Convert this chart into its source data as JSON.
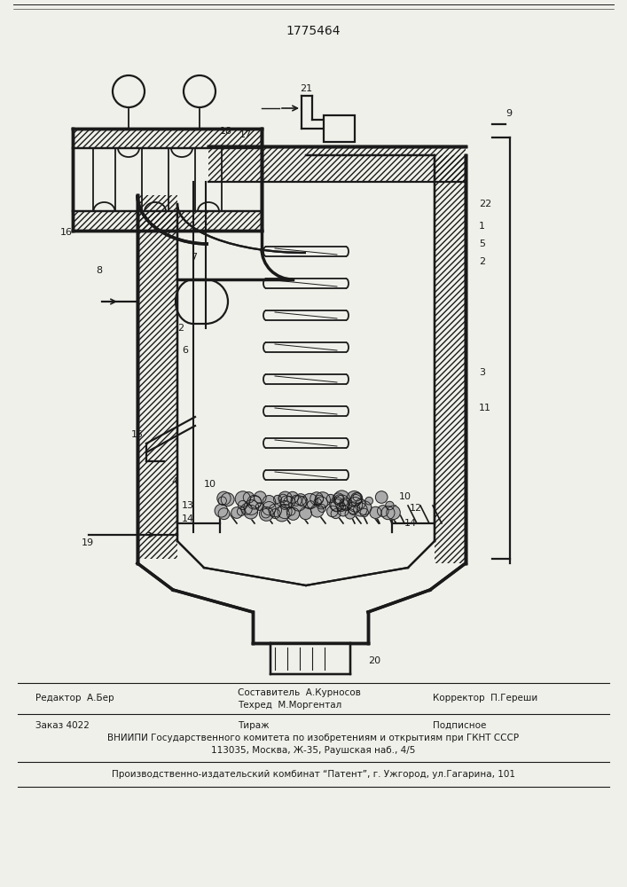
{
  "patent_number": "1775464",
  "bg_color": "#f0f0eb",
  "line_color": "#1a1a1a",
  "hatch_color": "#1a1a1a",
  "footer_editor": "Редактор  А.Бер",
  "footer_author": "Составитель  А.Курносов",
  "footer_tech": "Техред  М.Моргентал",
  "footer_corrector": "Корректор  П.Гереши",
  "footer_order": "Заказ 4022",
  "footer_tirazh": "Тираж",
  "footer_podp": "Подписное",
  "footer_vniipи": "ВНИИПИ Государственного комитета по изобретениям и открытиям при ГКНТ СССР",
  "footer_addr": "113035, Москва, Ж-35, Раушская наб., 4/5",
  "footer_patent": "Производственно-издательский комбинат “Патент”, г. Ужгород, ул.Гагарина, 101"
}
